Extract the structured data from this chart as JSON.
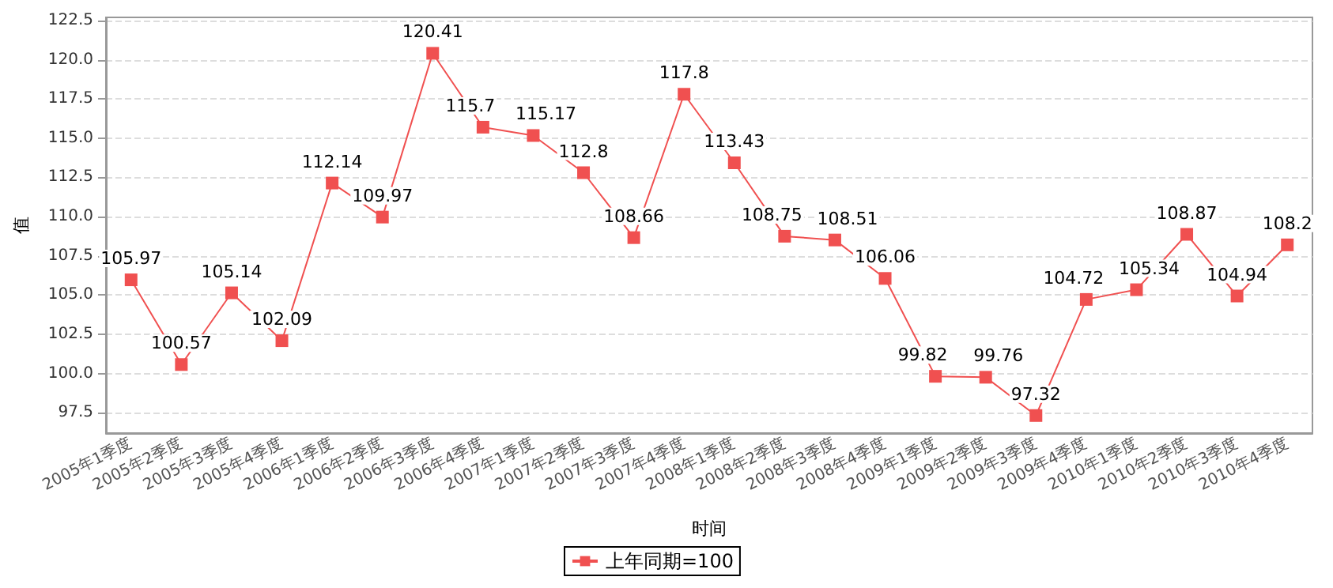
{
  "chart_data": {
    "type": "line",
    "xlabel": "时间",
    "ylabel": "值",
    "categories": [
      "2005年1季度",
      "2005年2季度",
      "2005年3季度",
      "2005年4季度",
      "2006年1季度",
      "2006年2季度",
      "2006年3季度",
      "2006年4季度",
      "2007年1季度",
      "2007年2季度",
      "2007年3季度",
      "2007年4季度",
      "2008年1季度",
      "2008年2季度",
      "2008年3季度",
      "2008年4季度",
      "2009年1季度",
      "2009年2季度",
      "2009年3季度",
      "2009年4季度",
      "2010年1季度",
      "2010年2季度",
      "2010年3季度",
      "2010年4季度"
    ],
    "series": [
      {
        "name": "上年同期=100",
        "color": "#f05050",
        "values": [
          105.97,
          100.57,
          105.14,
          102.09,
          112.14,
          109.97,
          120.41,
          115.7,
          115.17,
          112.8,
          108.66,
          117.8,
          113.43,
          108.75,
          108.51,
          106.06,
          99.82,
          99.76,
          97.32,
          104.72,
          105.34,
          108.87,
          104.94,
          108.2
        ]
      }
    ],
    "ylim": [
      96.2,
      122.7
    ],
    "yticks": [
      97.5,
      {
        "value": 100,
        "label": "100.0"
      },
      102.5,
      {
        "value": 105,
        "label": "105.0"
      },
      107.5,
      {
        "value": 110,
        "label": "110.0"
      },
      112.5,
      {
        "value": 115,
        "label": "115.0"
      },
      117.5,
      {
        "value": 120,
        "label": "120.0"
      },
      122.5
    ],
    "data_labels": true,
    "grid": "y",
    "legend": "bottom",
    "marker": "square",
    "line_style": "solid"
  }
}
